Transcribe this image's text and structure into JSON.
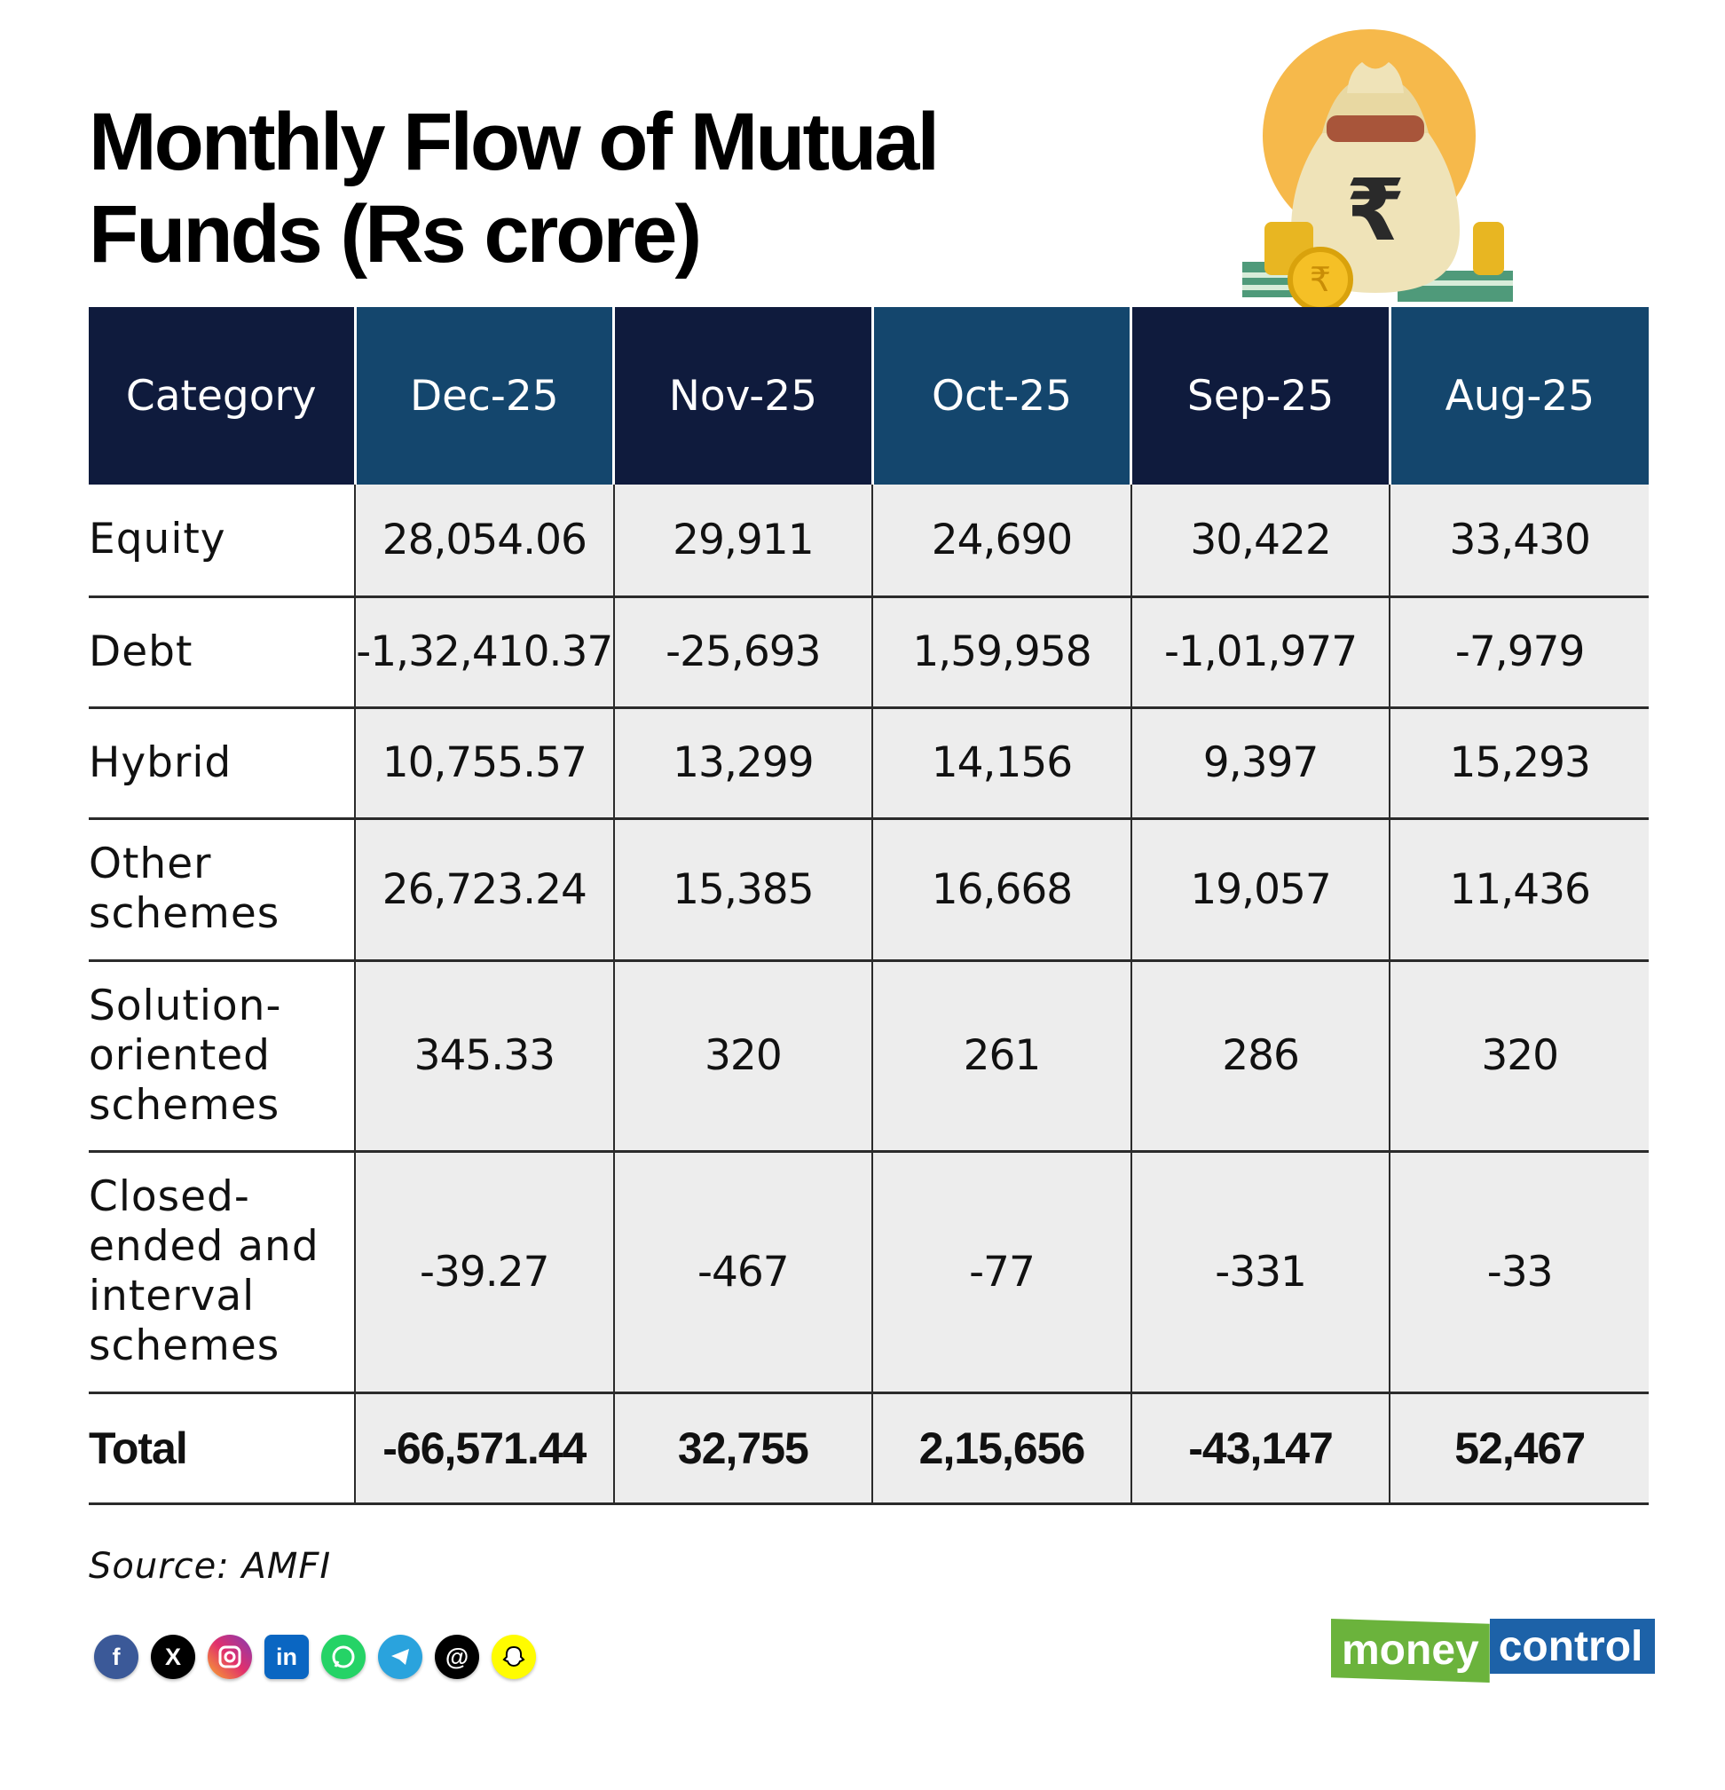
{
  "title": {
    "line1": "Monthly Flow of Mutual",
    "line2": "Funds (Rs crore)"
  },
  "colors": {
    "header_dark": "#0f1b3d",
    "header_mid": "#14466d",
    "cell_bg": "#ededed",
    "brand_green": "#6bb33c",
    "brand_blue": "#1d62a8"
  },
  "chart_data": {
    "type": "table",
    "title": "Monthly Flow of Mutual Funds (Rs crore)",
    "columns": [
      "Category",
      "Dec-25",
      "Nov-25",
      "Oct-25",
      "Sep-25",
      "Aug-25"
    ],
    "rows": [
      {
        "category": "Equity",
        "values": [
          "28,054.06",
          "29,911",
          "24,690",
          "30,422",
          "33,430"
        ]
      },
      {
        "category": "Debt",
        "values": [
          "-1,32,410.37",
          "-25,693",
          "1,59,958",
          "-1,01,977",
          "-7,979"
        ]
      },
      {
        "category": "Hybrid",
        "values": [
          "10,755.57",
          "13,299",
          "14,156",
          "9,397",
          "15,293"
        ]
      },
      {
        "category": "Other schemes",
        "values": [
          "26,723.24",
          "15,385",
          "16,668",
          "19,057",
          "11,436"
        ]
      },
      {
        "category": "Solution-oriented schemes",
        "values": [
          "345.33",
          "320",
          "261",
          "286",
          "320"
        ]
      },
      {
        "category": "Closed-ended and interval schemes",
        "values": [
          "-39.27",
          "-467",
          "-77",
          "-331",
          "-33"
        ]
      },
      {
        "category": "Total",
        "values": [
          "-66,571.44",
          "32,755",
          "2,15,656",
          "-43,147",
          "52,467"
        ]
      }
    ]
  },
  "source": "Source: AMFI",
  "social_icons": [
    "facebook-icon",
    "x-icon",
    "instagram-icon",
    "linkedin-icon",
    "whatsapp-icon",
    "telegram-icon",
    "threads-icon",
    "snapchat-icon"
  ],
  "logo": {
    "part1": "money",
    "part2": "control"
  },
  "illustration": {
    "symbol": "₹"
  }
}
